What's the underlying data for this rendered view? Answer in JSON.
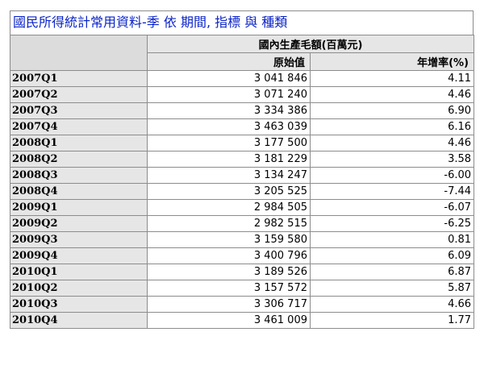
{
  "title": "國民所得統計常用資料-季 依 期間, 指標 與 種類",
  "header": {
    "indicator": "國內生產毛額(百萬元)",
    "col_original": "原始值",
    "col_growth": "年增率(%)"
  },
  "rows": [
    {
      "period": "2007Q1",
      "original": "3 041 846",
      "growth": "4.11"
    },
    {
      "period": "2007Q2",
      "original": "3 071 240",
      "growth": "4.46"
    },
    {
      "period": "2007Q3",
      "original": "3 334 386",
      "growth": "6.90"
    },
    {
      "period": "2007Q4",
      "original": "3 463 039",
      "growth": "6.16"
    },
    {
      "period": "2008Q1",
      "original": "3 177 500",
      "growth": "4.46"
    },
    {
      "period": "2008Q2",
      "original": "3 181 229",
      "growth": "3.58"
    },
    {
      "period": "2008Q3",
      "original": "3 134 247",
      "growth": "-6.00"
    },
    {
      "period": "2008Q4",
      "original": "3 205 525",
      "growth": "-7.44"
    },
    {
      "period": "2009Q1",
      "original": "2 984 505",
      "growth": "-6.07"
    },
    {
      "period": "2009Q2",
      "original": "2 982 515",
      "growth": "-6.25"
    },
    {
      "period": "2009Q3",
      "original": "3 159 580",
      "growth": "0.81"
    },
    {
      "period": "2009Q4",
      "original": "3 400 796",
      "growth": "6.09"
    },
    {
      "period": "2010Q1",
      "original": "3 189 526",
      "growth": "6.87"
    },
    {
      "period": "2010Q2",
      "original": "3 157 572",
      "growth": "5.87"
    },
    {
      "period": "2010Q3",
      "original": "3 306 717",
      "growth": "4.66"
    },
    {
      "period": "2010Q4",
      "original": "3 461 009",
      "growth": "1.77"
    }
  ],
  "colors": {
    "title_text": "#0a23c8",
    "header_bg": "#e6e6e6",
    "corner_bg": "#dcdcdc",
    "border": "#8c8c8c"
  }
}
